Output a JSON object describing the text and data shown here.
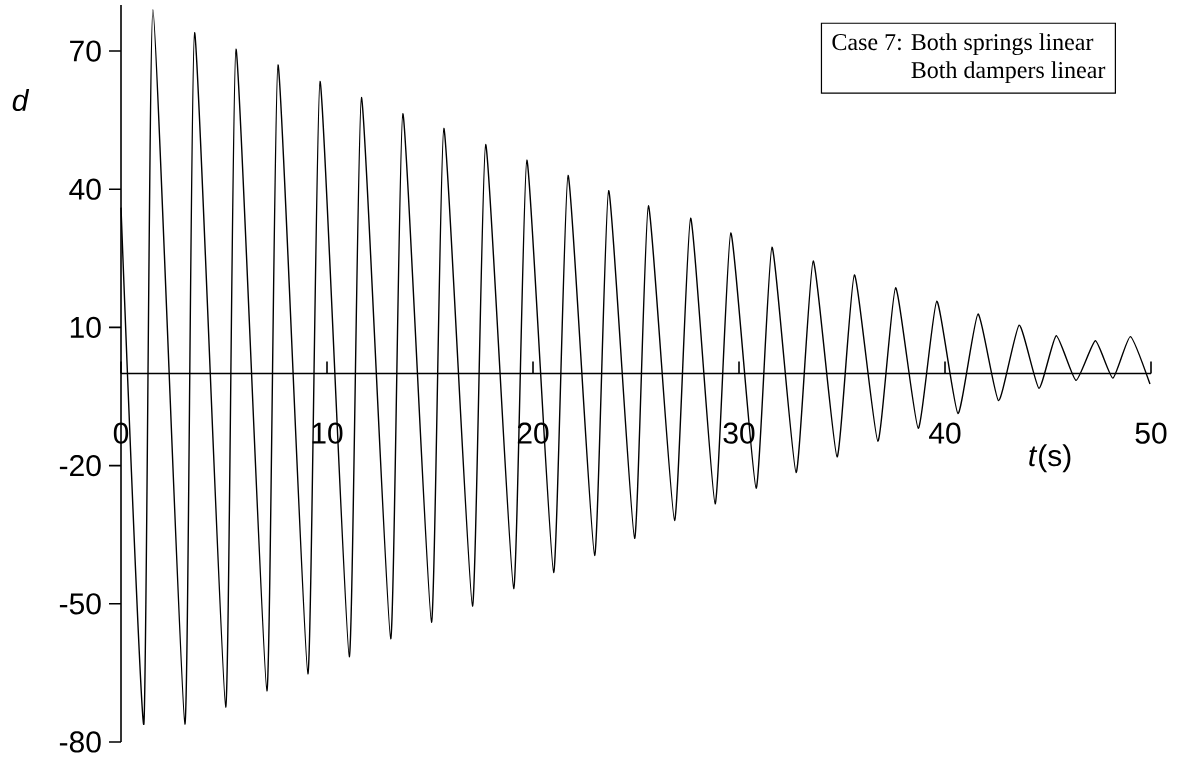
{
  "chart_data": {
    "type": "line",
    "xlabel": "*t*(s)",
    "ylabel": "d",
    "annotations": [
      "Case 7: Both springs linear",
      "Both dampers linear"
    ],
    "x": [
      0,
      1.11,
      1.55,
      3.1,
      3.57,
      5.08,
      5.58,
      7.08,
      7.62,
      9.07,
      9.66,
      11.08,
      11.67,
      13.09,
      13.68,
      15.07,
      15.67,
      17.06,
      17.7,
      19.06,
      19.7,
      21.0,
      21.7,
      22.99,
      23.67,
      24.93,
      25.6,
      26.87,
      27.65,
      28.84,
      29.6,
      30.83,
      31.6,
      32.77,
      33.6,
      34.76,
      35.6,
      36.74,
      37.6,
      38.7,
      39.6,
      40.63,
      41.6,
      42.6,
      43.6,
      44.56,
      45.4,
      46.36,
      47.3,
      48.15,
      49.0,
      49.95
    ],
    "values": [
      36,
      -76.1,
      79.0,
      -76.1,
      74.0,
      -72.4,
      70.4,
      -68.9,
      67.0,
      -65.2,
      63.4,
      -61.5,
      59.9,
      -57.6,
      56.4,
      -54.0,
      53.2,
      -50.5,
      49.7,
      -46.7,
      46.3,
      -43.2,
      43.0,
      -39.5,
      39.7,
      -35.8,
      36.4,
      -31.9,
      33.7,
      -28.3,
      30.5,
      -24.9,
      27.4,
      -21.5,
      24.4,
      -18.1,
      21.4,
      -14.7,
      18.6,
      -11.9,
      15.7,
      -8.7,
      12.9,
      -5.9,
      10.5,
      -3.2,
      8.2,
      -1.5,
      7.1,
      -1.0,
      8.0,
      -2.3
    ],
    "color": "#000000",
    "xlim": [
      0,
      50
    ],
    "ylim": [
      -80,
      80
    ],
    "xticks": [
      0,
      10,
      20,
      30,
      40,
      50
    ],
    "yticks": [
      -80,
      -50,
      -20,
      10,
      40,
      70
    ]
  }
}
